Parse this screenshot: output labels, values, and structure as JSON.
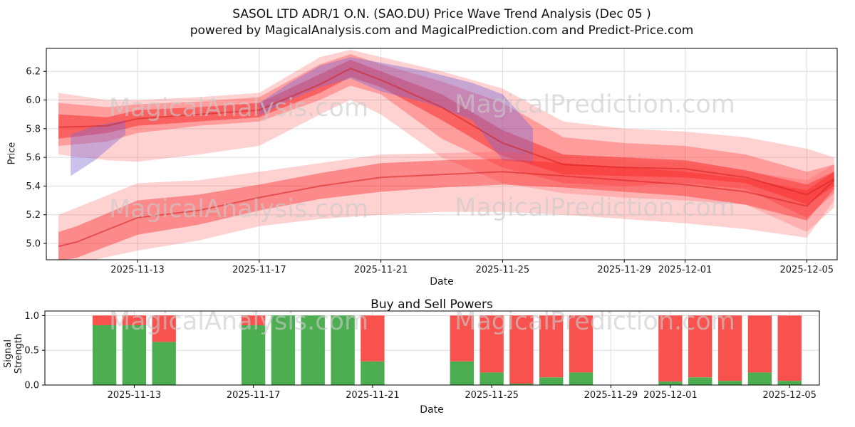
{
  "header": {
    "title": "SASOL LTD ADR/1 O.N. (SAO.DU) Price Wave Trend Analysis (Dec 05 )",
    "subtitle": "powered by MagicalAnalysis.com and MagicalPrediction.com and Predict-Price.com"
  },
  "watermarks": [
    "MagicalAnalysis.com",
    "MagicalPrediction.com"
  ],
  "chart_data": [
    {
      "type": "area",
      "name": "price-wave-trend",
      "xlabel": "Date",
      "ylabel": "Price",
      "xlim": [
        0,
        26
      ],
      "ylim": [
        4.886,
        6.36
      ],
      "grid": true,
      "y_ticks": [
        5.0,
        5.2,
        5.4,
        5.6,
        5.8,
        6.0,
        6.2
      ],
      "x_ticks": [
        {
          "label": "2025-11-13",
          "day": 3
        },
        {
          "label": "2025-11-17",
          "day": 7
        },
        {
          "label": "2025-11-21",
          "day": 11
        },
        {
          "label": "2025-11-25",
          "day": 15
        },
        {
          "label": "2025-11-29",
          "day": 19
        },
        {
          "label": "2025-12-01",
          "day": 21
        },
        {
          "label": "2025-12-05",
          "day": 25
        }
      ],
      "bands": [
        {
          "name": "upper-envelope",
          "color": "#ff4d4d",
          "opacity": 0.25,
          "x": [
            0.4,
            2,
            3,
            5,
            7,
            9,
            10,
            11,
            13,
            15,
            17,
            19,
            21,
            23,
            25,
            25.9
          ],
          "hi": [
            6.05,
            6.0,
            6.0,
            6.02,
            6.05,
            6.3,
            6.35,
            6.3,
            6.2,
            6.08,
            5.85,
            5.8,
            5.78,
            5.74,
            5.66,
            5.6
          ],
          "lo": [
            5.62,
            5.58,
            5.57,
            5.62,
            5.68,
            5.9,
            6.0,
            5.9,
            5.6,
            5.42,
            5.35,
            5.32,
            5.3,
            5.27,
            5.08,
            5.25
          ]
        },
        {
          "name": "upper-band",
          "color": "#ff3b3b",
          "opacity": 0.35,
          "x": [
            0.4,
            2,
            3,
            5,
            7,
            9,
            10,
            11,
            13,
            15,
            17,
            19,
            21,
            23,
            25,
            25.9
          ],
          "hi": [
            5.98,
            5.95,
            5.97,
            5.99,
            6.02,
            6.25,
            6.32,
            6.25,
            6.13,
            5.98,
            5.74,
            5.7,
            5.68,
            5.62,
            5.5,
            5.55
          ],
          "lo": [
            5.68,
            5.71,
            5.77,
            5.82,
            5.85,
            6.0,
            6.1,
            6.04,
            5.73,
            5.53,
            5.42,
            5.4,
            5.42,
            5.38,
            5.18,
            5.35
          ]
        },
        {
          "name": "upper-core",
          "color": "#f51b1b",
          "opacity": 0.45,
          "x": [
            0.4,
            2,
            3,
            5,
            7,
            9,
            10,
            11,
            13,
            15,
            17,
            19,
            21,
            23,
            25,
            25.9
          ],
          "hi": [
            5.9,
            5.88,
            5.93,
            5.95,
            5.98,
            6.18,
            6.28,
            6.2,
            6.04,
            5.79,
            5.62,
            5.6,
            5.58,
            5.51,
            5.41,
            5.5
          ],
          "lo": [
            5.73,
            5.77,
            5.82,
            5.85,
            5.88,
            6.05,
            6.16,
            6.09,
            5.86,
            5.61,
            5.48,
            5.47,
            5.46,
            5.42,
            5.27,
            5.4
          ]
        },
        {
          "name": "purple-left",
          "color": "#7a66d2",
          "opacity": 0.4,
          "x": [
            0.8,
            1.6,
            2.6
          ],
          "hi": [
            5.76,
            5.82,
            5.86
          ],
          "lo": [
            5.47,
            5.58,
            5.76
          ]
        },
        {
          "name": "purple-main",
          "color": "#7a66d2",
          "opacity": 0.42,
          "x": [
            7,
            8,
            9,
            10,
            11,
            12.5,
            14,
            15,
            16
          ],
          "hi": [
            5.98,
            6.12,
            6.24,
            6.3,
            6.26,
            6.2,
            6.12,
            6.04,
            5.8
          ],
          "lo": [
            5.89,
            6.0,
            6.09,
            6.15,
            6.06,
            5.98,
            5.86,
            5.58,
            5.56
          ]
        },
        {
          "name": "lower-envelope",
          "color": "#ff4d4d",
          "opacity": 0.25,
          "x": [
            0.4,
            1,
            3,
            5,
            7,
            9,
            11,
            13,
            15,
            17,
            19,
            21,
            23,
            25,
            25.9
          ],
          "hi": [
            5.2,
            5.25,
            5.42,
            5.44,
            5.5,
            5.56,
            5.62,
            5.63,
            5.64,
            5.61,
            5.58,
            5.56,
            5.5,
            5.44,
            5.55
          ],
          "lo": [
            4.86,
            4.86,
            4.95,
            5.02,
            5.12,
            5.17,
            5.2,
            5.22,
            5.22,
            5.2,
            5.17,
            5.14,
            5.1,
            5.04,
            5.3
          ]
        },
        {
          "name": "lower-core",
          "color": "#f92525",
          "opacity": 0.42,
          "x": [
            0.4,
            1,
            3,
            5,
            7,
            9,
            11,
            13,
            15,
            17,
            19,
            21,
            23,
            25,
            25.9
          ],
          "hi": [
            5.08,
            5.12,
            5.3,
            5.34,
            5.41,
            5.49,
            5.56,
            5.58,
            5.59,
            5.56,
            5.53,
            5.5,
            5.45,
            5.37,
            5.5
          ],
          "lo": [
            4.88,
            4.9,
            5.06,
            5.13,
            5.23,
            5.31,
            5.36,
            5.39,
            5.41,
            5.39,
            5.36,
            5.33,
            5.27,
            5.16,
            5.38
          ]
        }
      ],
      "lines": [
        {
          "name": "upper-trend-line",
          "color": "#d42020",
          "opacity": 0.55,
          "width": 2,
          "x": [
            0.4,
            2,
            3,
            5,
            7,
            9,
            10,
            11,
            13,
            15,
            17,
            19,
            21,
            23,
            25,
            25.9
          ],
          "y": [
            5.81,
            5.82,
            5.87,
            5.9,
            5.93,
            6.11,
            6.22,
            6.14,
            5.95,
            5.7,
            5.55,
            5.53,
            5.52,
            5.46,
            5.34,
            5.45
          ]
        },
        {
          "name": "lower-trend-line",
          "color": "#d42020",
          "opacity": 0.55,
          "width": 2,
          "x": [
            0.4,
            1,
            3,
            5,
            7,
            9,
            11,
            13,
            15,
            17,
            19,
            21,
            23,
            25,
            25.9
          ],
          "y": [
            4.98,
            5.01,
            5.18,
            5.23,
            5.32,
            5.4,
            5.46,
            5.48,
            5.5,
            5.47,
            5.44,
            5.41,
            5.36,
            5.26,
            5.44
          ]
        }
      ]
    },
    {
      "type": "bar",
      "name": "buy-sell-powers",
      "title": "Buy and Sell Powers",
      "xlabel": "Date",
      "ylabel": "Signal Strength",
      "xlim": [
        0,
        26
      ],
      "ylim": [
        0,
        1.065
      ],
      "grid": true,
      "y_ticks": [
        0.0,
        0.5,
        1.0
      ],
      "x_ticks": [
        {
          "label": "2025-11-13",
          "day": 3
        },
        {
          "label": "2025-11-17",
          "day": 7
        },
        {
          "label": "2025-11-21",
          "day": 11
        },
        {
          "label": "2025-11-25",
          "day": 15
        },
        {
          "label": "2025-11-29",
          "day": 19
        },
        {
          "label": "2025-12-01",
          "day": 21
        },
        {
          "label": "2025-12-05",
          "day": 25
        }
      ],
      "bar_width_days": 0.8,
      "colors": {
        "buy": "#4cae50",
        "sell": "#f8524e"
      },
      "bars": [
        {
          "date": "2025-11-12",
          "day": 2,
          "buy": 0.86,
          "sell": 0.14
        },
        {
          "date": "2025-11-13",
          "day": 3,
          "buy": 0.86,
          "sell": 0.14
        },
        {
          "date": "2025-11-14",
          "day": 4,
          "buy": 0.62,
          "sell": 0.38
        },
        {
          "date": "2025-11-17",
          "day": 7,
          "buy": 0.86,
          "sell": 0.14
        },
        {
          "date": "2025-11-18",
          "day": 8,
          "buy": 1.0,
          "sell": 0.0
        },
        {
          "date": "2025-11-19",
          "day": 9,
          "buy": 1.0,
          "sell": 0.0
        },
        {
          "date": "2025-11-20",
          "day": 10,
          "buy": 1.0,
          "sell": 0.0
        },
        {
          "date": "2025-11-21",
          "day": 11,
          "buy": 0.34,
          "sell": 0.66
        },
        {
          "date": "2025-11-24",
          "day": 14,
          "buy": 0.34,
          "sell": 0.66
        },
        {
          "date": "2025-11-25",
          "day": 15,
          "buy": 0.18,
          "sell": 0.82
        },
        {
          "date": "2025-11-26",
          "day": 16,
          "buy": 0.02,
          "sell": 0.98
        },
        {
          "date": "2025-11-27",
          "day": 17,
          "buy": 0.11,
          "sell": 0.89
        },
        {
          "date": "2025-11-28",
          "day": 18,
          "buy": 0.18,
          "sell": 0.82
        },
        {
          "date": "2025-12-01",
          "day": 21,
          "buy": 0.05,
          "sell": 0.95
        },
        {
          "date": "2025-12-02",
          "day": 22,
          "buy": 0.11,
          "sell": 0.89
        },
        {
          "date": "2025-12-03",
          "day": 23,
          "buy": 0.06,
          "sell": 0.94
        },
        {
          "date": "2025-12-04",
          "day": 24,
          "buy": 0.18,
          "sell": 0.82
        },
        {
          "date": "2025-12-05",
          "day": 25,
          "buy": 0.06,
          "sell": 0.94
        }
      ]
    }
  ]
}
